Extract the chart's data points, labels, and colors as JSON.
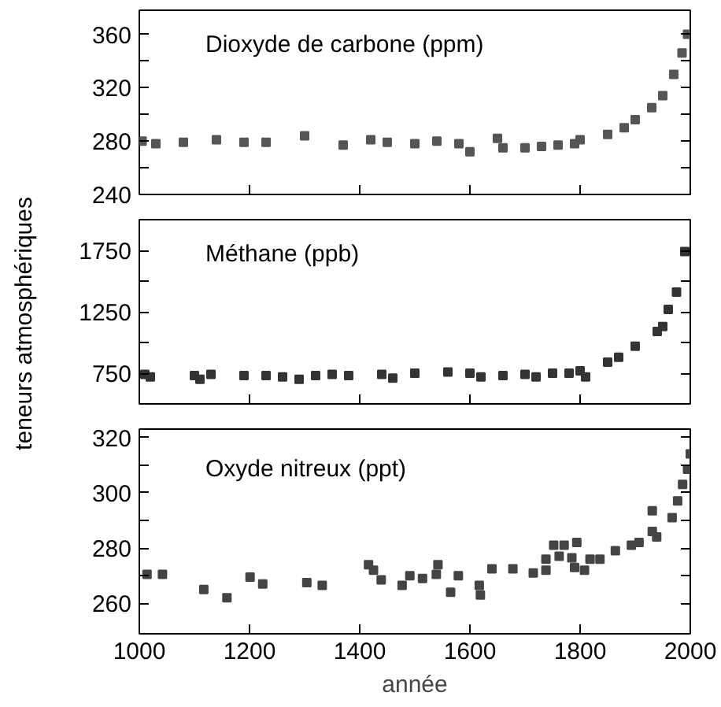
{
  "chart_data": [
    {
      "type": "scatter",
      "title": "Dioxyde de carbone (ppm)",
      "marker": "square",
      "grid": false,
      "tick_labels": "y",
      "xlim": [
        1000,
        2000
      ],
      "xticks": [
        1000,
        1200,
        1400,
        1600,
        1800,
        2000
      ],
      "ylim": [
        240,
        378
      ],
      "yticks": [
        240,
        {
          "value": 260,
          "label": null
        },
        280,
        {
          "value": 300,
          "label": null
        },
        320,
        {
          "value": 340,
          "label": null
        },
        360
      ],
      "x": [
        1005,
        1030,
        1080,
        1140,
        1190,
        1230,
        1300,
        1370,
        1420,
        1450,
        1500,
        1540,
        1580,
        1600,
        1650,
        1660,
        1700,
        1730,
        1760,
        1790,
        1800,
        1850,
        1880,
        1900,
        1930,
        1950,
        1970,
        1985,
        1995
      ],
      "series": [
        {
          "color": "#555555",
          "values": [
            280,
            278,
            279,
            281,
            279,
            279,
            284,
            277,
            281,
            279,
            278,
            280,
            278,
            272,
            282,
            275,
            275,
            276,
            277,
            278,
            281,
            285,
            290,
            296,
            305,
            314,
            330,
            346,
            360
          ]
        }
      ]
    },
    {
      "type": "scatter",
      "title": "Méthane (ppb)",
      "ylabel": "teneurs atmosphériques",
      "marker": "square",
      "grid": false,
      "tick_labels": "y",
      "xlim": [
        1000,
        2000
      ],
      "xticks": [
        1000,
        1200,
        1400,
        1600,
        1800,
        2000
      ],
      "ylim": [
        500,
        2000
      ],
      "yticks": [
        750,
        {
          "value": 1000,
          "label": null
        },
        1250,
        {
          "value": 1500,
          "label": null
        },
        1750
      ],
      "x": [
        1010,
        1020,
        1100,
        1110,
        1130,
        1190,
        1230,
        1260,
        1290,
        1320,
        1350,
        1380,
        1440,
        1460,
        1500,
        1560,
        1600,
        1620,
        1660,
        1700,
        1720,
        1750,
        1780,
        1800,
        1810,
        1850,
        1870,
        1900,
        1940,
        1950,
        1960,
        1975,
        1990
      ],
      "series": [
        {
          "color": "#333333",
          "values": [
            740,
            720,
            730,
            700,
            740,
            730,
            730,
            720,
            700,
            730,
            740,
            730,
            740,
            710,
            750,
            760,
            750,
            720,
            730,
            740,
            720,
            750,
            750,
            770,
            720,
            840,
            880,
            970,
            1090,
            1130,
            1270,
            1410,
            1740
          ]
        }
      ]
    },
    {
      "type": "scatter",
      "title": "Oxyde nitreux (ppt)",
      "xlabel": "année",
      "marker": "square",
      "grid": false,
      "xlim": [
        1000,
        2000
      ],
      "xticks": [
        1000,
        1200,
        1400,
        1600,
        1800,
        2000
      ],
      "ylim": [
        249,
        323
      ],
      "yticks": [
        260,
        {
          "value": 270,
          "label": null
        },
        280,
        {
          "value": 290,
          "label": null
        },
        300,
        {
          "value": 310,
          "label": null
        },
        320
      ],
      "x": [
        1014,
        1042,
        1117,
        1159,
        1201,
        1224,
        1304,
        1332,
        1416,
        1425,
        1439,
        1477,
        1491,
        1514,
        1542,
        1539,
        1565,
        1579,
        1617,
        1619,
        1640,
        1678,
        1715,
        1738,
        1738,
        1752,
        1762,
        1771,
        1785,
        1790,
        1794,
        1808,
        1818,
        1836,
        1864,
        1893,
        1907,
        1931,
        1939,
        1931,
        1967,
        1977,
        1986,
        1995,
        2000
      ],
      "series": [
        {
          "color": "#444444",
          "values": [
            270.5,
            270.5,
            265,
            262,
            269.5,
            267,
            267.5,
            266.5,
            274,
            272,
            268.5,
            266.5,
            270,
            269,
            274,
            270.5,
            264,
            270,
            266.5,
            263,
            272.5,
            272.5,
            271,
            272,
            276,
            281,
            277,
            281,
            276.5,
            273,
            282,
            272,
            276,
            276,
            279,
            281,
            282,
            286,
            284,
            293.5,
            291,
            297,
            303,
            308.5,
            314
          ]
        }
      ]
    }
  ]
}
